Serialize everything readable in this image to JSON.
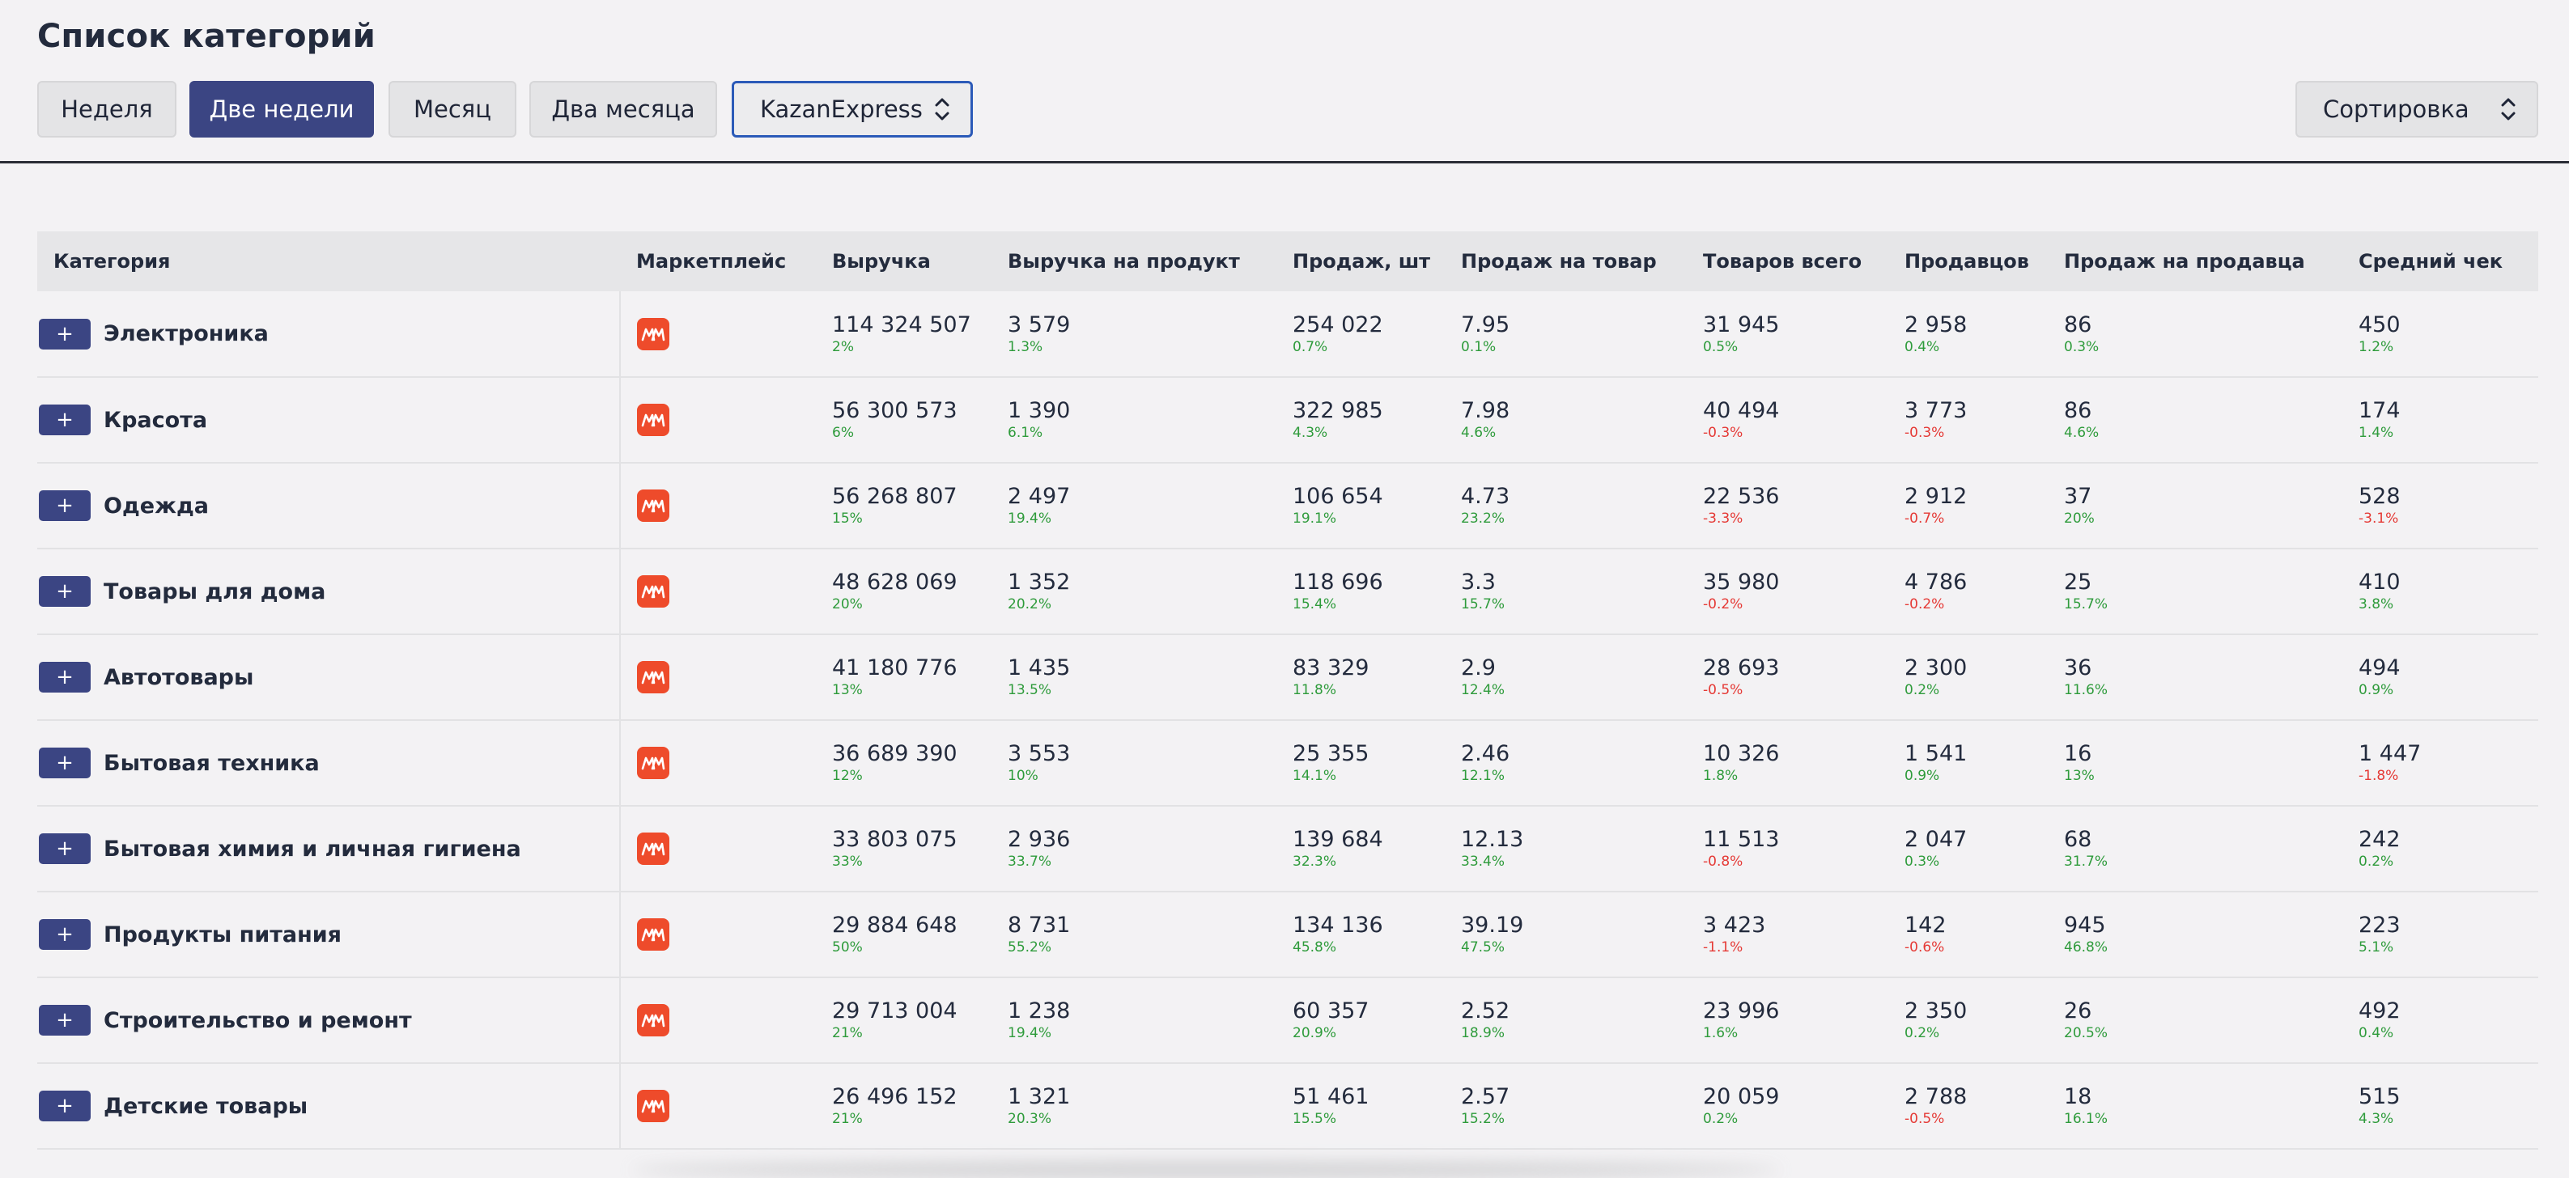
{
  "page": {
    "title": "Список категорий"
  },
  "toolbar": {
    "periods": [
      {
        "label": "Неделя",
        "active": false
      },
      {
        "label": "Две недели",
        "active": true
      },
      {
        "label": "Месяц",
        "active": false
      },
      {
        "label": "Два месяца",
        "active": false
      }
    ],
    "marketplace_select": {
      "value": "KazanExpress",
      "icon": "updown-chevron-icon"
    },
    "sort_select": {
      "value": "Сортировка",
      "icon": "updown-chevron-icon"
    }
  },
  "table": {
    "columns": [
      "Категория",
      "Маркетплейс",
      "Выручка",
      "Выручка на продукт",
      "Продаж, шт",
      "Продаж на товар",
      "Товаров всего",
      "Продавцов",
      "Продаж на продавца",
      "Средний чек"
    ],
    "rows": [
      {
        "category": "Электроника",
        "expand_label": "+",
        "cells": [
          {
            "v": "114 324 507",
            "d": "2%"
          },
          {
            "v": "3 579",
            "d": "1.3%"
          },
          {
            "v": "254 022",
            "d": "0.7%"
          },
          {
            "v": "7.95",
            "d": "0.1%"
          },
          {
            "v": "31 945",
            "d": "0.5%"
          },
          {
            "v": "2 958",
            "d": "0.4%"
          },
          {
            "v": "86",
            "d": "0.3%"
          },
          {
            "v": "450",
            "d": "1.2%"
          }
        ]
      },
      {
        "category": "Красота",
        "expand_label": "+",
        "cells": [
          {
            "v": "56 300 573",
            "d": "6%"
          },
          {
            "v": "1 390",
            "d": "6.1%"
          },
          {
            "v": "322 985",
            "d": "4.3%"
          },
          {
            "v": "7.98",
            "d": "4.6%"
          },
          {
            "v": "40 494",
            "d": "-0.3%"
          },
          {
            "v": "3 773",
            "d": "-0.3%"
          },
          {
            "v": "86",
            "d": "4.6%"
          },
          {
            "v": "174",
            "d": "1.4%"
          }
        ]
      },
      {
        "category": "Одежда",
        "expand_label": "+",
        "cells": [
          {
            "v": "56 268 807",
            "d": "15%"
          },
          {
            "v": "2 497",
            "d": "19.4%"
          },
          {
            "v": "106 654",
            "d": "19.1%"
          },
          {
            "v": "4.73",
            "d": "23.2%"
          },
          {
            "v": "22 536",
            "d": "-3.3%"
          },
          {
            "v": "2 912",
            "d": "-0.7%"
          },
          {
            "v": "37",
            "d": "20%"
          },
          {
            "v": "528",
            "d": "-3.1%"
          }
        ]
      },
      {
        "category": "Товары для дома",
        "expand_label": "+",
        "cells": [
          {
            "v": "48 628 069",
            "d": "20%"
          },
          {
            "v": "1 352",
            "d": "20.2%"
          },
          {
            "v": "118 696",
            "d": "15.4%"
          },
          {
            "v": "3.3",
            "d": "15.7%"
          },
          {
            "v": "35 980",
            "d": "-0.2%"
          },
          {
            "v": "4 786",
            "d": "-0.2%"
          },
          {
            "v": "25",
            "d": "15.7%"
          },
          {
            "v": "410",
            "d": "3.8%"
          }
        ]
      },
      {
        "category": "Автотовары",
        "expand_label": "+",
        "cells": [
          {
            "v": "41 180 776",
            "d": "13%"
          },
          {
            "v": "1 435",
            "d": "13.5%"
          },
          {
            "v": "83 329",
            "d": "11.8%"
          },
          {
            "v": "2.9",
            "d": "12.4%"
          },
          {
            "v": "28 693",
            "d": "-0.5%"
          },
          {
            "v": "2 300",
            "d": "0.2%"
          },
          {
            "v": "36",
            "d": "11.6%"
          },
          {
            "v": "494",
            "d": "0.9%"
          }
        ]
      },
      {
        "category": "Бытовая техника",
        "expand_label": "+",
        "cells": [
          {
            "v": "36 689 390",
            "d": "12%"
          },
          {
            "v": "3 553",
            "d": "10%"
          },
          {
            "v": "25 355",
            "d": "14.1%"
          },
          {
            "v": "2.46",
            "d": "12.1%"
          },
          {
            "v": "10 326",
            "d": "1.8%"
          },
          {
            "v": "1 541",
            "d": "0.9%"
          },
          {
            "v": "16",
            "d": "13%"
          },
          {
            "v": "1 447",
            "d": "-1.8%"
          }
        ]
      },
      {
        "category": "Бытовая химия и личная гигиена",
        "expand_label": "+",
        "cells": [
          {
            "v": "33 803 075",
            "d": "33%"
          },
          {
            "v": "2 936",
            "d": "33.7%"
          },
          {
            "v": "139 684",
            "d": "32.3%"
          },
          {
            "v": "12.13",
            "d": "33.4%"
          },
          {
            "v": "11 513",
            "d": "-0.8%"
          },
          {
            "v": "2 047",
            "d": "0.3%"
          },
          {
            "v": "68",
            "d": "31.7%"
          },
          {
            "v": "242",
            "d": "0.2%"
          }
        ]
      },
      {
        "category": "Продукты питания",
        "expand_label": "+",
        "cells": [
          {
            "v": "29 884 648",
            "d": "50%"
          },
          {
            "v": "8 731",
            "d": "55.2%"
          },
          {
            "v": "134 136",
            "d": "45.8%"
          },
          {
            "v": "39.19",
            "d": "47.5%"
          },
          {
            "v": "3 423",
            "d": "-1.1%"
          },
          {
            "v": "142",
            "d": "-0.6%"
          },
          {
            "v": "945",
            "d": "46.8%"
          },
          {
            "v": "223",
            "d": "5.1%"
          }
        ]
      },
      {
        "category": "Строительство и ремонт",
        "expand_label": "+",
        "cells": [
          {
            "v": "29 713 004",
            "d": "21%"
          },
          {
            "v": "1 238",
            "d": "19.4%"
          },
          {
            "v": "60 357",
            "d": "20.9%"
          },
          {
            "v": "2.52",
            "d": "18.9%"
          },
          {
            "v": "23 996",
            "d": "1.6%"
          },
          {
            "v": "2 350",
            "d": "0.2%"
          },
          {
            "v": "26",
            "d": "20.5%"
          },
          {
            "v": "492",
            "d": "0.4%"
          }
        ]
      },
      {
        "category": "Детские товары",
        "expand_label": "+",
        "cells": [
          {
            "v": "26 496 152",
            "d": "21%"
          },
          {
            "v": "1 321",
            "d": "20.3%"
          },
          {
            "v": "51 461",
            "d": "15.5%"
          },
          {
            "v": "2.57",
            "d": "15.2%"
          },
          {
            "v": "20 059",
            "d": "0.2%"
          },
          {
            "v": "2 788",
            "d": "-0.5%"
          },
          {
            "v": "18",
            "d": "16.1%"
          },
          {
            "v": "515",
            "d": "4.3%"
          }
        ]
      }
    ]
  },
  "colors": {
    "accent": "#3b4583",
    "focus_border": "#2b5ab8",
    "positive": "#2e9b3b",
    "negative": "#e53935",
    "marketplace_logo": "#ee4b2b"
  }
}
